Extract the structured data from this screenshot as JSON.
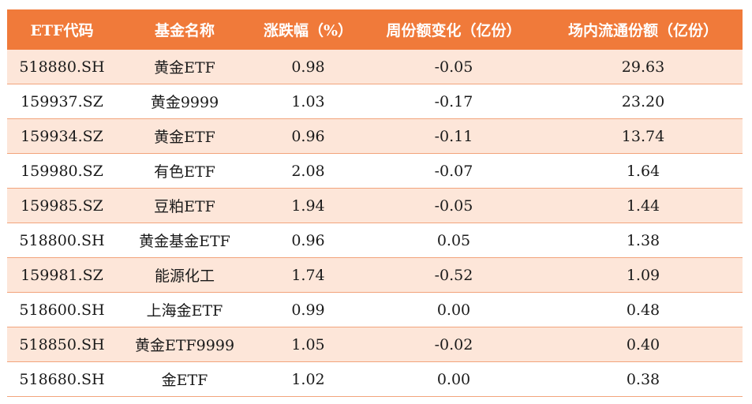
{
  "table": {
    "headers": [
      "ETF代码",
      "基金名称",
      "涨跌幅（%）",
      "周份额变化（亿份）",
      "场内流通份额（亿份）"
    ],
    "rows": [
      [
        "518880.SH",
        "黄金ETF",
        "0.98",
        "-0.05",
        "29.63"
      ],
      [
        "159937.SZ",
        "黄金9999",
        "1.03",
        "-0.17",
        "23.20"
      ],
      [
        "159934.SZ",
        "黄金ETF",
        "0.96",
        "-0.11",
        "13.74"
      ],
      [
        "159980.SZ",
        "有色ETF",
        "2.08",
        "-0.07",
        "1.64"
      ],
      [
        "159985.SZ",
        "豆粕ETF",
        "1.94",
        "-0.05",
        "1.44"
      ],
      [
        "518800.SH",
        "黄金基金ETF",
        "0.96",
        "0.05",
        "1.38"
      ],
      [
        "159981.SZ",
        "能源化工",
        "1.74",
        "-0.52",
        "1.09"
      ],
      [
        "518600.SH",
        "上海金ETF",
        "0.99",
        "0.00",
        "0.48"
      ],
      [
        "518850.SH",
        "黄金ETF9999",
        "1.05",
        "-0.02",
        "0.40"
      ],
      [
        "518680.SH",
        "金ETF",
        "1.02",
        "0.00",
        "0.38"
      ]
    ]
  },
  "colors": {
    "header_bg": "#f07a3a",
    "header_text": "#ffffff",
    "row_alt_bg": "#fde6d9",
    "row_border": "#f2a47c"
  }
}
